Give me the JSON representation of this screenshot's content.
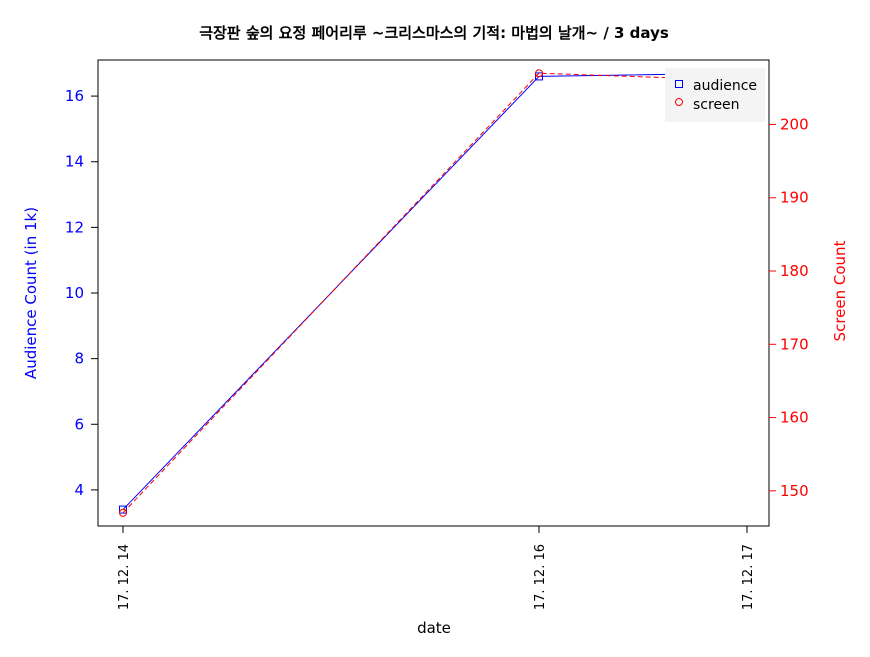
{
  "chart_data": {
    "type": "line",
    "title": "극장판 숲의 요정 페어리루 ~크리스마스의 기적: 마법의 날개~ / 3 days",
    "xlabel": "date",
    "x": [
      "17. 12. 14",
      "17. 12. 16",
      "17. 12. 17"
    ],
    "x_days": [
      14,
      16,
      17
    ],
    "left_axis": {
      "label": "Audience Count (in 1k)",
      "color": "#0000ff",
      "ticks": [
        4,
        6,
        8,
        10,
        12,
        14,
        16
      ],
      "ylim": [
        2.9,
        17.1
      ]
    },
    "right_axis": {
      "label": "Screen Count",
      "color": "#ff0000",
      "ticks": [
        150,
        160,
        170,
        180,
        190,
        200
      ],
      "ylim": [
        145.2,
        208.8
      ]
    },
    "series": [
      {
        "name": "audience",
        "axis": "left",
        "color": "#0000ff",
        "marker": "square",
        "line_style": "solid",
        "values": [
          3.4,
          16.6,
          16.7
        ]
      },
      {
        "name": "screen",
        "axis": "right",
        "color": "#ff0000",
        "marker": "circle",
        "line_style": "dashed",
        "values": [
          147,
          207,
          206
        ]
      }
    ],
    "legend": {
      "position": "top-right",
      "entries": [
        "audience",
        "screen"
      ]
    },
    "grid": false
  }
}
